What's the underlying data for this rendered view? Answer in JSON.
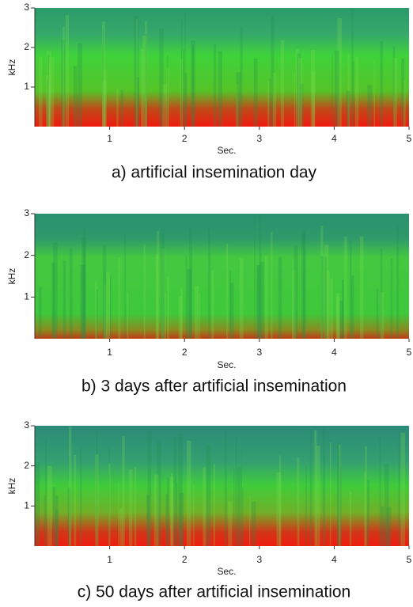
{
  "chart_data": [
    {
      "type": "spectrogram",
      "caption": "a)  artificial  insemination  day",
      "xlabel": "Sec.",
      "ylabel": "kHz",
      "xlim": [
        0,
        5
      ],
      "xticks": [
        1,
        2,
        3,
        4,
        5
      ],
      "ylim": [
        0,
        3
      ],
      "yticks": [
        1,
        2,
        3
      ]
    },
    {
      "type": "spectrogram",
      "caption": "b)  3  days  after  artificial  insemination",
      "xlabel": "Sec.",
      "ylabel": "kHz",
      "xlim": [
        0,
        5
      ],
      "xticks": [
        1,
        2,
        3,
        4,
        5
      ],
      "ylim": [
        0,
        3
      ],
      "yticks": [
        1,
        2,
        3
      ]
    },
    {
      "type": "spectrogram",
      "caption": "c)  50  days  after  artificial  insemination",
      "xlabel": "Sec.",
      "ylabel": "kHz",
      "xlim": [
        0,
        5
      ],
      "xticks": [
        1,
        2,
        3,
        4,
        5
      ],
      "ylim": [
        0,
        3
      ],
      "yticks": [
        1,
        2,
        3
      ]
    }
  ]
}
